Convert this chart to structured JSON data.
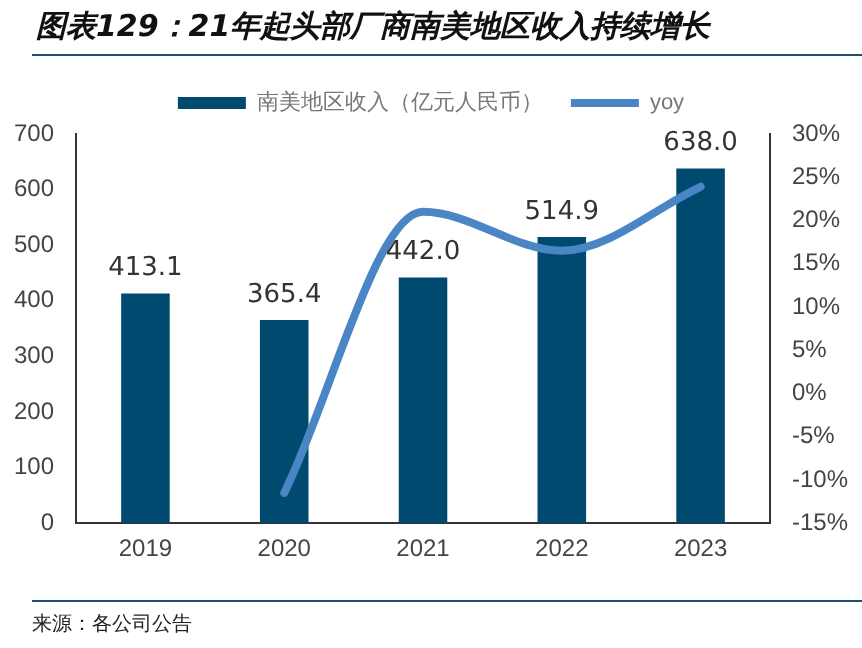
{
  "chart_data": {
    "type": "bar",
    "title": "图表129：21年起头部厂商南美地区收入持续增长",
    "categories": [
      "2019",
      "2020",
      "2021",
      "2022",
      "2023"
    ],
    "series": [
      {
        "name": "南美地区收入（亿元人民币）",
        "color": "#004a6f",
        "values": [
          413.1,
          365.4,
          442.0,
          514.9,
          638.0
        ],
        "value_labels": [
          "413.1",
          "365.4",
          "442.0",
          "514.9",
          "638.0"
        ]
      },
      {
        "name": "yoy",
        "type": "line",
        "axis": "y2",
        "color": "#4a86c5",
        "marker": "none",
        "line_style": "solid",
        "values": [
          null,
          -11.5,
          21.0,
          16.5,
          23.9
        ]
      }
    ],
    "ylim": [
      0,
      700
    ],
    "yticks": [
      0,
      100,
      200,
      300,
      400,
      500,
      600,
      700
    ],
    "y2lim": [
      -15,
      30
    ],
    "y2ticks": [
      {
        "value": -15,
        "label": "-15%"
      },
      {
        "value": -10,
        "label": "-10%"
      },
      {
        "value": -5,
        "label": "-5%"
      },
      {
        "value": 0,
        "label": "0%"
      },
      {
        "value": 5,
        "label": "5%"
      },
      {
        "value": 10,
        "label": "10%"
      },
      {
        "value": 15,
        "label": "15%"
      },
      {
        "value": 20,
        "label": "20%"
      },
      {
        "value": 25,
        "label": "25%"
      },
      {
        "value": 30,
        "label": "30%"
      }
    ],
    "grid": false,
    "legend": "top",
    "annotations": [
      "来源：各公司公告"
    ]
  }
}
